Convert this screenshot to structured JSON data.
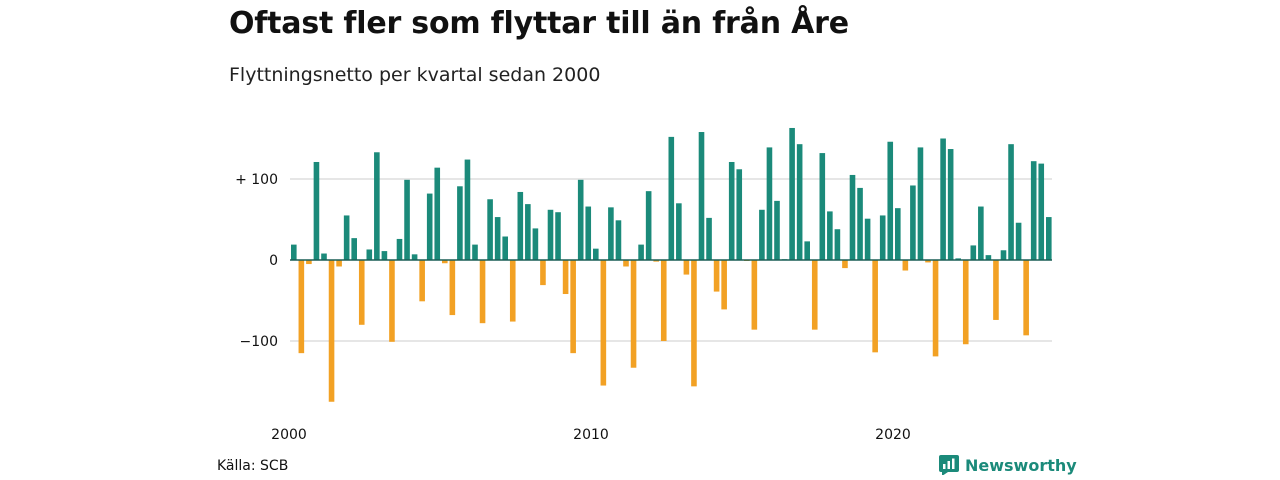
{
  "title": "Oftast fler som flyttar till än från Åre",
  "subtitle": "Flyttningsnetto per kvartal sedan 2000",
  "source": "Källa: SCB",
  "brand": {
    "name": "Newsworthy",
    "icon": "newsworthy-logo-icon"
  },
  "colors": {
    "positive": "#1b8a7a",
    "negative": "#f2a124",
    "grid": "#dddddd",
    "zero": "#1b5e56"
  },
  "chart_data": {
    "type": "bar",
    "title": "Oftast fler som flyttar till än från Åre",
    "subtitle": "Flyttningsnetto per kvartal sedan 2000",
    "xlabel": "",
    "ylabel": "",
    "ylim": [
      -175,
      165
    ],
    "yticks": [
      {
        "value": 100,
        "label": "+ 100"
      },
      {
        "value": 0,
        "label": "0"
      },
      {
        "value": -100,
        "label": "−100"
      }
    ],
    "xticks": [
      {
        "value": 2000,
        "label": "2000"
      },
      {
        "value": 2010,
        "label": "2010"
      },
      {
        "value": 2020,
        "label": "2020"
      }
    ],
    "x_unit": "quarter",
    "start_year": 2000,
    "values": [
      19,
      -115,
      -5,
      121,
      8,
      -175,
      -8,
      55,
      27,
      -80,
      13,
      133,
      11,
      -101,
      26,
      99,
      7,
      -51,
      82,
      114,
      -4,
      -68,
      91,
      124,
      19,
      -78,
      75,
      53,
      29,
      -76,
      84,
      69,
      39,
      -31,
      62,
      59,
      -42,
      -115,
      99,
      66,
      14,
      -155,
      65,
      49,
      -8,
      -133,
      19,
      85,
      -2,
      -100,
      152,
      70,
      -18,
      -156,
      158,
      52,
      -39,
      -61,
      121,
      112,
      -1,
      -86,
      62,
      139,
      73,
      1,
      163,
      143,
      23,
      -86,
      132,
      60,
      38,
      -10,
      105,
      89,
      51,
      -114,
      55,
      146,
      64,
      -13,
      92,
      139,
      -3,
      -119,
      150,
      137,
      2,
      -104,
      18,
      66,
      6,
      -74,
      12,
      143,
      46,
      -93,
      122,
      119,
      53
    ]
  }
}
